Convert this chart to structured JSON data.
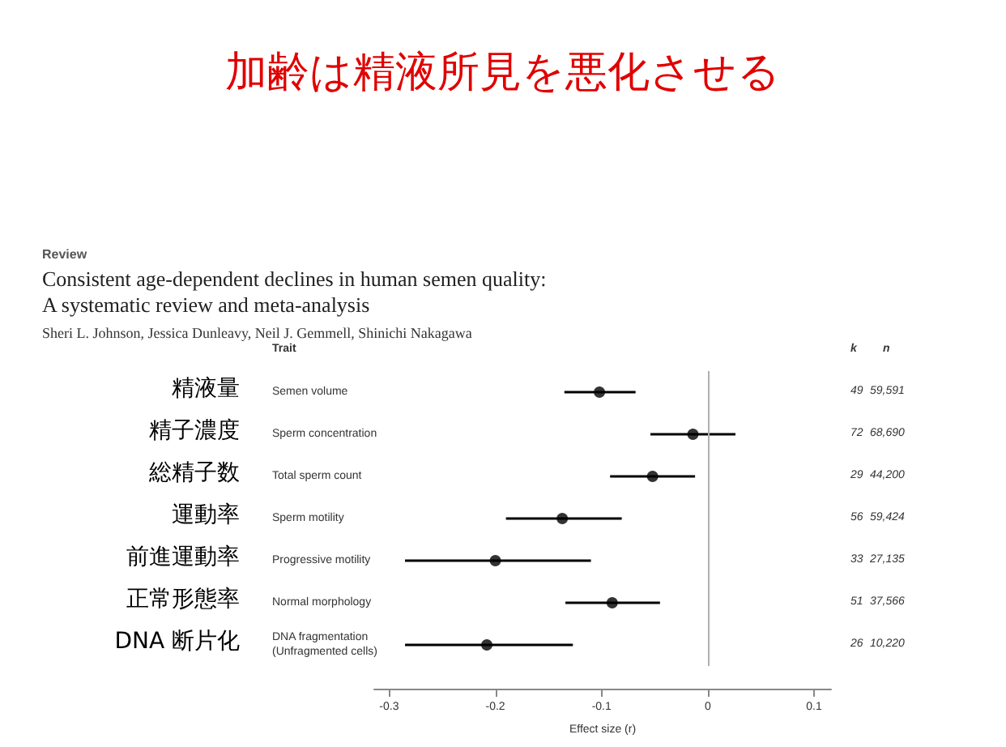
{
  "chart_data": {
    "type": "scatter",
    "orientation": "horizontal",
    "title": "加齢は精液所見を悪化させる",
    "subtitle": "Consistent age-dependent declines in human semen quality:\nA systematic review and meta-analysis",
    "xlabel": "Effect size (r)",
    "categories": [
      "Semen volume",
      "Sperm concentration",
      "Total sperm count",
      "Sperm motility",
      "Progressive motility",
      "Normal morphology",
      "DNA fragmentation\n(Unfragmented cells)"
    ],
    "series": [
      {
        "color": "#000000",
        "values": [
          -0.102,
          -0.014,
          -0.052,
          -0.137,
          -0.2,
          -0.09,
          -0.208
        ],
        "errors": [
          [
            -0.135,
            -0.068
          ],
          [
            -0.054,
            0.026
          ],
          [
            -0.092,
            -0.012
          ],
          [
            -0.19,
            -0.081
          ],
          [
            -0.285,
            -0.11
          ],
          [
            -0.134,
            -0.045
          ],
          [
            -0.285,
            -0.127
          ]
        ]
      }
    ],
    "marker": "circle",
    "xlim": [
      -0.314,
      0.116
    ],
    "xticks": [
      -0.3,
      -0.2,
      -0.1,
      0,
      0.1
    ],
    "ref_lines": [
      {
        "axis": "x",
        "value": 0,
        "color": "#b0b0b0"
      }
    ],
    "grid": false,
    "legend": false,
    "annotations": [
      "Review",
      "Sheri L. Johnson, Jessica Dunleavy, Neil J. Gemmell, Shinichi Nakagawa",
      "Trait",
      "k",
      "n",
      "精液量",
      "49",
      "59,591",
      "精子濃度",
      "72",
      "68,690",
      "総精子数",
      "29",
      "44,200",
      "運動率",
      "56",
      "59,424",
      "前進運動率",
      "33",
      "27,135",
      "正常形態率",
      "51",
      "37,566",
      "DNA 断片化",
      "26",
      "10,220"
    ]
  }
}
